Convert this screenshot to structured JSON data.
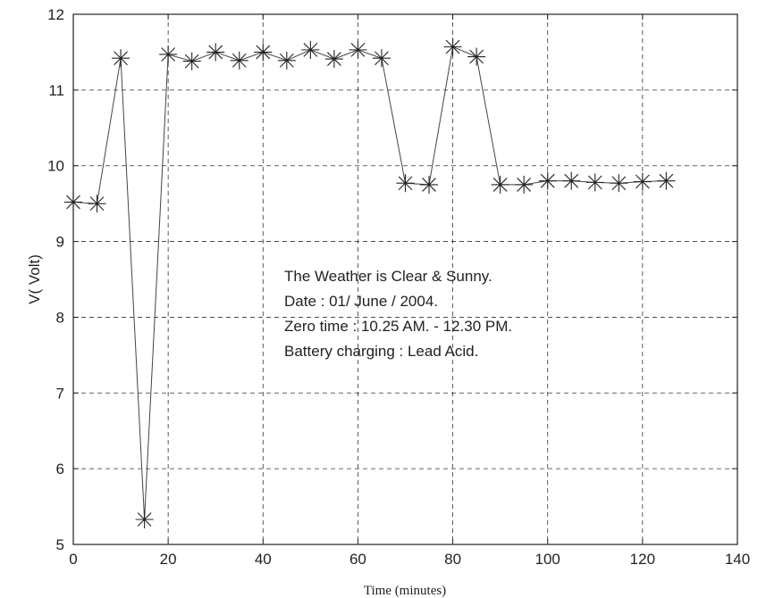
{
  "chart_data": {
    "type": "line",
    "xlabel": "Time (minutes)",
    "ylabel": "V( Volt)",
    "xlim": [
      0,
      140
    ],
    "ylim": [
      5,
      12
    ],
    "xticks": [
      0,
      20,
      40,
      60,
      80,
      100,
      120,
      140
    ],
    "yticks": [
      5,
      6,
      7,
      8,
      9,
      10,
      11,
      12
    ],
    "grid": true,
    "grid_style": "dashed",
    "marker": "asterisk",
    "line_color": "#444444",
    "series": [
      {
        "x": [
          0,
          5,
          10,
          15,
          20,
          25,
          30,
          35,
          40,
          45,
          50,
          55,
          60,
          65,
          70,
          75,
          80,
          85,
          90,
          95,
          100,
          105,
          110,
          115,
          120,
          125
        ],
        "values": [
          9.52,
          9.5,
          11.42,
          5.33,
          11.47,
          11.38,
          11.5,
          11.39,
          11.5,
          11.39,
          11.53,
          11.41,
          11.53,
          11.42,
          9.77,
          9.75,
          11.57,
          11.44,
          9.75,
          9.75,
          9.8,
          9.8,
          9.78,
          9.77,
          9.79,
          9.8
        ]
      }
    ],
    "annotations": [
      "The Weather is Clear & Sunny.",
      "Date : 01/ June / 2004.",
      "Zero time : 10.25 AM. - 12.30 PM.",
      "Battery charging : Lead Acid."
    ]
  }
}
